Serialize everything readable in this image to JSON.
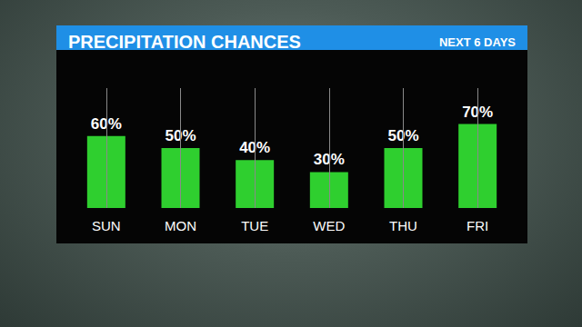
{
  "chart_data": {
    "type": "bar",
    "title": "PRECIPITATION CHANCES",
    "subtitle": "NEXT 6 DAYS",
    "categories": [
      "SUN",
      "MON",
      "TUE",
      "WED",
      "THU",
      "FRI"
    ],
    "values": [
      60,
      50,
      40,
      30,
      50,
      70
    ],
    "value_labels": [
      "60%",
      "50%",
      "40%",
      "30%",
      "50%",
      "70%"
    ],
    "data_labels": true,
    "color": "#2fcf2f",
    "ylim": [
      0,
      100
    ],
    "tick_labels": "x",
    "grid": true
  }
}
